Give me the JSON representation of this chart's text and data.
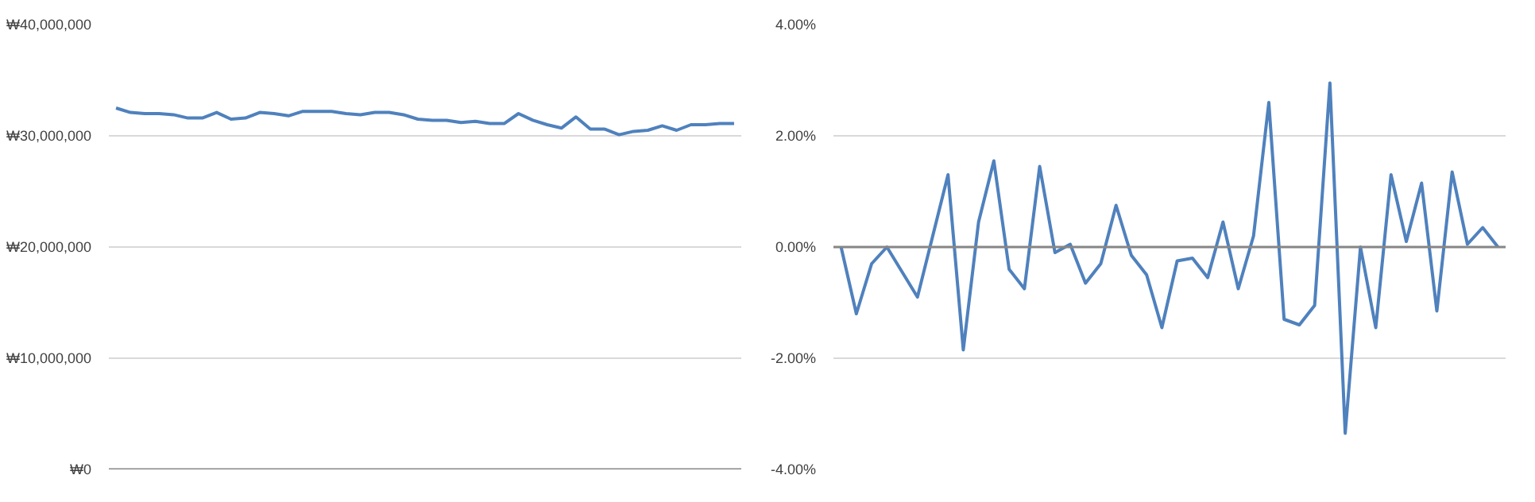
{
  "chart_data": [
    {
      "type": "line",
      "categories": [
        null,
        null,
        null,
        null,
        null,
        null,
        null,
        null,
        null,
        null,
        null,
        null,
        null,
        null,
        null,
        null,
        null,
        null,
        null,
        null,
        null,
        null,
        null,
        null,
        null,
        null,
        null,
        null,
        null,
        null,
        null,
        null,
        null,
        null,
        null,
        null,
        null,
        null,
        null,
        null,
        null,
        null,
        null,
        null
      ],
      "series": [
        {
          "color": "#4f81bd",
          "values": [
            32500000,
            32100000,
            32000000,
            32000000,
            31900000,
            31600000,
            31600000,
            32100000,
            31500000,
            31600000,
            32100000,
            32000000,
            31800000,
            32200000,
            32200000,
            32200000,
            32000000,
            31900000,
            32100000,
            32100000,
            31900000,
            31500000,
            31400000,
            31400000,
            31200000,
            31300000,
            31100000,
            31100000,
            32000000,
            31400000,
            31000000,
            30700000,
            31700000,
            30600000,
            30600000,
            30100000,
            30400000,
            30500000,
            30900000,
            30500000,
            31000000,
            31000000,
            31100000,
            31100000
          ]
        }
      ],
      "ylim": [
        0,
        40000000
      ],
      "yticks": [
        {
          "value": 0,
          "label": "₩0"
        },
        {
          "value": 10000000,
          "label": "₩10,000,000"
        },
        {
          "value": 20000000,
          "label": "₩20,000,000"
        },
        {
          "value": 30000000,
          "label": "₩30,000,000"
        },
        {
          "value": 40000000,
          "label": "₩40,000,000"
        }
      ],
      "grid": "y",
      "tick_labels": "y",
      "marker": "none",
      "line_style": "solid"
    },
    {
      "type": "line",
      "categories": [
        null,
        null,
        null,
        null,
        null,
        null,
        null,
        null,
        null,
        null,
        null,
        null,
        null,
        null,
        null,
        null,
        null,
        null,
        null,
        null,
        null,
        null,
        null,
        null,
        null,
        null,
        null,
        null,
        null,
        null,
        null,
        null,
        null,
        null,
        null,
        null,
        null,
        null,
        null,
        null,
        null,
        null,
        null,
        null
      ],
      "series": [
        {
          "color": "#4f81bd",
          "values": [
            0,
            -1.2,
            -0.3,
            0.0,
            -0.45,
            -0.9,
            0.2,
            1.3,
            -1.85,
            0.45,
            1.55,
            -0.4,
            -0.75,
            1.45,
            -0.1,
            0.05,
            -0.65,
            -0.3,
            0.75,
            -0.15,
            -0.5,
            -1.45,
            -0.25,
            -0.2,
            -0.55,
            0.45,
            -0.75,
            0.2,
            2.6,
            -1.3,
            -1.4,
            -1.05,
            2.95,
            -3.35,
            0.0,
            -1.45,
            1.3,
            0.1,
            1.15,
            -1.15,
            1.35,
            0.05,
            0.35,
            0.0
          ]
        }
      ],
      "ylim": [
        -4,
        4
      ],
      "yticks": [
        {
          "value": -4,
          "label": "-4.00%"
        },
        {
          "value": -2,
          "label": "-2.00%"
        },
        {
          "value": 0,
          "label": "0.00%"
        },
        {
          "value": 2,
          "label": "2.00%"
        },
        {
          "value": 4,
          "label": "4.00%"
        }
      ],
      "grid": "y",
      "tick_labels": "y",
      "marker": "none",
      "line_style": "solid"
    }
  ]
}
